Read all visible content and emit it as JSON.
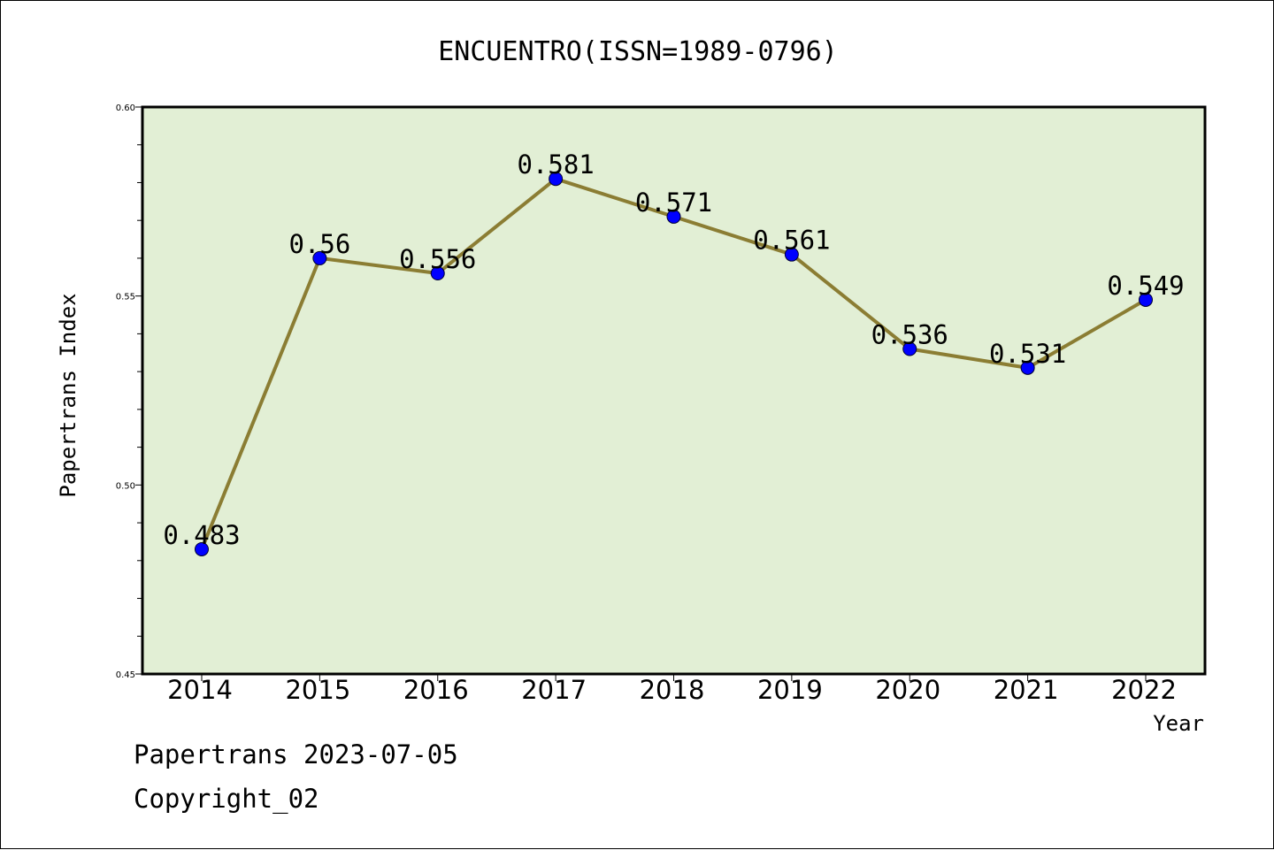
{
  "chart_data": {
    "type": "line",
    "title": "ENCUENTRO(ISSN=1989-0796)",
    "xlabel": "Year",
    "ylabel": "Papertrans Index",
    "categories": [
      "2014",
      "2015",
      "2016",
      "2017",
      "2018",
      "2019",
      "2020",
      "2021",
      "2022"
    ],
    "series": [
      {
        "values": [
          0.483,
          0.56,
          0.556,
          0.581,
          0.571,
          0.561,
          0.536,
          0.531,
          0.549
        ]
      }
    ],
    "data_labels": [
      "0.483",
      "0.56",
      "0.556",
      "0.581",
      "0.571",
      "0.561",
      "0.536",
      "0.531",
      "0.549"
    ],
    "ylim": [
      0.45,
      0.6
    ],
    "yticks": [
      "0.45",
      "0.50",
      "0.55",
      "0.60"
    ],
    "grid": false,
    "legend": "none",
    "colors": {
      "plot_background": "#e2efd5",
      "line": "#8b7d33",
      "marker": "#0000ff"
    }
  },
  "footer": {
    "line1": "Papertrans 2023-07-05",
    "line2": "Copyright_02"
  }
}
